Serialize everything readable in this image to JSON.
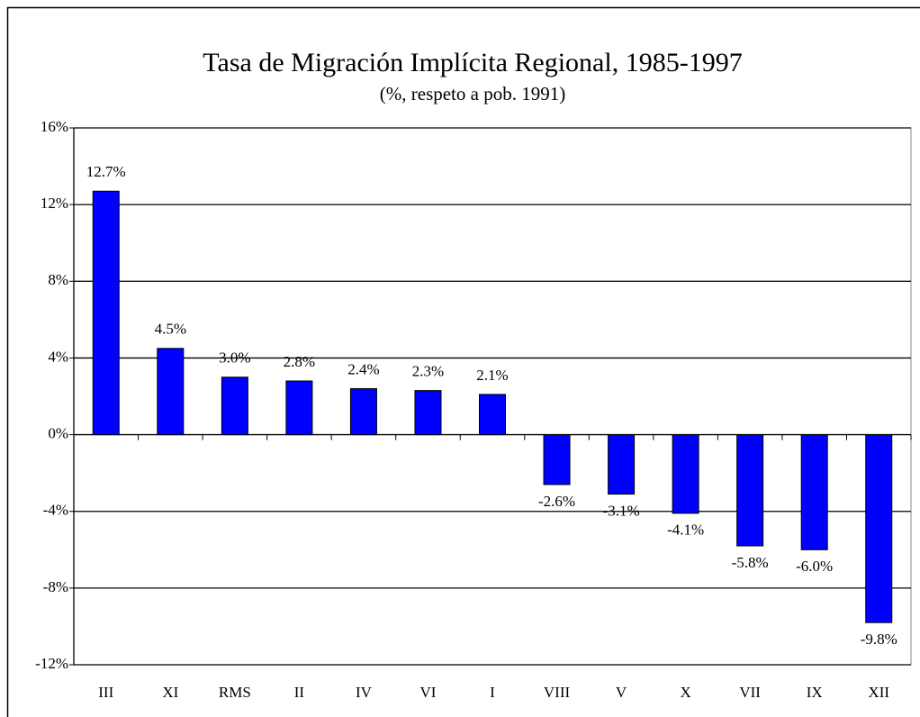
{
  "chart_data": {
    "type": "bar",
    "title": "Tasa de Migración Implícita Regional, 1985-1997",
    "subtitle": "(%, respeto a pob. 1991)",
    "categories": [
      "III",
      "XI",
      "RMS",
      "II",
      "IV",
      "VI",
      "I",
      "VIII",
      "V",
      "X",
      "VII",
      "IX",
      "XII"
    ],
    "values": [
      12.7,
      4.5,
      3.0,
      2.8,
      2.4,
      2.3,
      2.1,
      -2.6,
      -3.1,
      -4.1,
      -5.8,
      -6.0,
      -9.8
    ],
    "value_labels": [
      "12.7%",
      "4.5%",
      "3.0%",
      "2.8%",
      "2.4%",
      "2.3%",
      "2.1%",
      "-2.6%",
      "-3.1%",
      "-4.1%",
      "-5.8%",
      "-6.0%",
      "-9.8%"
    ],
    "color": "#0000ff",
    "ylim": [
      -12,
      16
    ],
    "yticks": [
      {
        "value": -12,
        "label": "-12%"
      },
      {
        "value": -8,
        "label": "-8%"
      },
      {
        "value": -4,
        "label": "-4%"
      },
      {
        "value": 0,
        "label": "0%"
      },
      {
        "value": 4,
        "label": "4%"
      },
      {
        "value": 8,
        "label": "8%"
      },
      {
        "value": 12,
        "label": "12%"
      },
      {
        "value": 16,
        "label": "16%"
      }
    ],
    "grid": true
  }
}
